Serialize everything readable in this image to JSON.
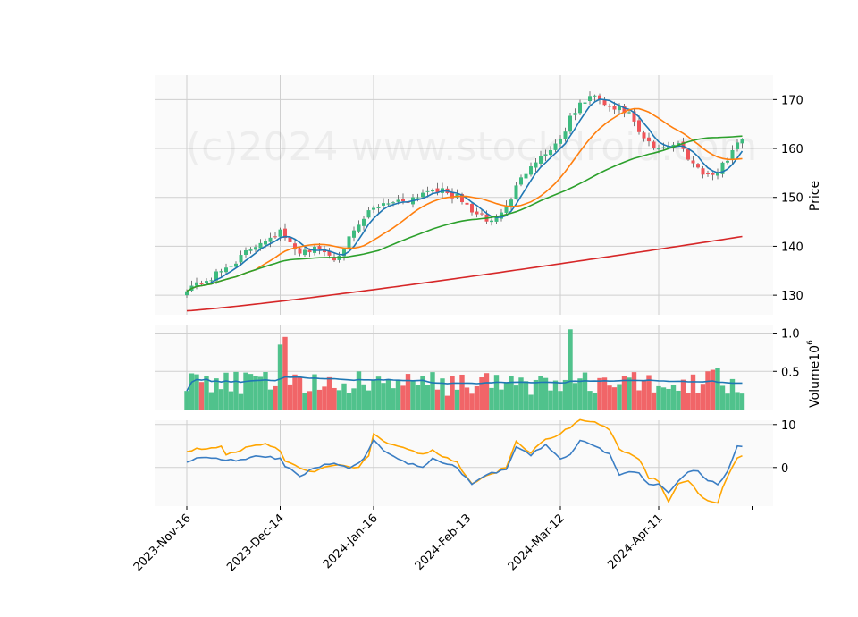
{
  "chart_data": {
    "type": "candlestick",
    "watermark": "(c)2024 www.stockdroid.com",
    "x_tick_labels": [
      "2023-Nov-16",
      "2023-Dec-14",
      "2024-Jan-16",
      "2024-Feb-13",
      "2024-Mar-12",
      "2024-Apr-11"
    ],
    "x_tick_index": [
      0,
      19,
      38,
      57,
      76,
      96
    ],
    "n_sessions": 114,
    "price_panel": {
      "ylabel": "Price",
      "ylim": [
        126,
        175
      ],
      "yticks": [
        130,
        140,
        150,
        160,
        170
      ],
      "up_color": "#3dbb7f",
      "down_color": "#f05458",
      "keypoints": [
        [
          0,
          131.5
        ],
        [
          5,
          133.5
        ],
        [
          10,
          137
        ],
        [
          15,
          141
        ],
        [
          19,
          143
        ],
        [
          22,
          139
        ],
        [
          27,
          139.5
        ],
        [
          30,
          137.5
        ],
        [
          32,
          140
        ],
        [
          35,
          144
        ],
        [
          37,
          147
        ],
        [
          40,
          149
        ],
        [
          45,
          149.5
        ],
        [
          50,
          152
        ],
        [
          55,
          150
        ],
        [
          59,
          146.5
        ],
        [
          62,
          145
        ],
        [
          65,
          148
        ],
        [
          67,
          152
        ],
        [
          70,
          157
        ],
        [
          73,
          159
        ],
        [
          76,
          162
        ],
        [
          78,
          166
        ],
        [
          80,
          169
        ],
        [
          82,
          170.5
        ],
        [
          84,
          170
        ],
        [
          86,
          168
        ],
        [
          88,
          168
        ],
        [
          90,
          167
        ],
        [
          92,
          163
        ],
        [
          95,
          160
        ],
        [
          97,
          160.5
        ],
        [
          100,
          161
        ],
        [
          103,
          157
        ],
        [
          106,
          154.5
        ],
        [
          108,
          155
        ],
        [
          110,
          158
        ],
        [
          112,
          161.5
        ],
        [
          113,
          162
        ]
      ]
    },
    "moving_averages": [
      {
        "color": "#1f77b4",
        "window": 5
      },
      {
        "color": "#ff7f0e",
        "window": 15
      },
      {
        "color": "#2ca02c",
        "window": 40
      },
      {
        "color": "#d62728",
        "end_value": 142,
        "start_value": 126.8
      }
    ],
    "volume_panel": {
      "ylabel": "Volume",
      "ylabel_exponent": "6",
      "ylim": [
        0,
        1.1
      ],
      "yticks": [
        0.5,
        1.0
      ],
      "spikes": [
        [
          19,
          0.85
        ],
        [
          20,
          0.95
        ],
        [
          78,
          1.05
        ],
        [
          106,
          0.5
        ],
        [
          107,
          0.52
        ],
        [
          108,
          0.55
        ]
      ],
      "ma_color": "#1f77b4"
    },
    "oscillator_panel": {
      "ylim": [
        -9,
        11
      ],
      "yticks": [
        0,
        10
      ],
      "series": [
        {
          "color": "#ffa500",
          "keypoints": [
            [
              0,
              3.8
            ],
            [
              3,
              4.5
            ],
            [
              7,
              4.8
            ],
            [
              8,
              3
            ],
            [
              12,
              4.5
            ],
            [
              16,
              5.5
            ],
            [
              19,
              4
            ],
            [
              20,
              1.5
            ],
            [
              25,
              -1
            ],
            [
              30,
              0.5
            ],
            [
              35,
              0
            ],
            [
              37,
              3
            ],
            [
              38,
              8
            ],
            [
              40,
              6
            ],
            [
              45,
              4
            ],
            [
              48,
              3
            ],
            [
              50,
              4
            ],
            [
              55,
              1
            ],
            [
              58,
              -4
            ],
            [
              61,
              -2
            ],
            [
              65,
              0
            ],
            [
              67,
              6
            ],
            [
              70,
              3.5
            ],
            [
              73,
              6.5
            ],
            [
              76,
              8
            ],
            [
              80,
              11
            ],
            [
              83,
              10.5
            ],
            [
              86,
              9
            ],
            [
              88,
              4
            ],
            [
              90,
              3
            ],
            [
              92,
              2
            ],
            [
              94,
              -2.5
            ],
            [
              96,
              -3
            ],
            [
              98,
              -8
            ],
            [
              100,
              -4
            ],
            [
              102,
              -3
            ],
            [
              104,
              -6
            ],
            [
              106,
              -7.5
            ],
            [
              108,
              -8
            ],
            [
              110,
              -2
            ],
            [
              112,
              2
            ],
            [
              113,
              3
            ]
          ]
        },
        {
          "color": "#3b7ec4",
          "keypoints": [
            [
              0,
              1.5
            ],
            [
              4,
              2.5
            ],
            [
              8,
              1.5
            ],
            [
              12,
              2
            ],
            [
              14,
              3
            ],
            [
              17,
              2.5
            ],
            [
              19,
              2
            ],
            [
              20,
              0.5
            ],
            [
              23,
              -2
            ],
            [
              26,
              0
            ],
            [
              30,
              1
            ],
            [
              33,
              0
            ],
            [
              36,
              2
            ],
            [
              38,
              6.5
            ],
            [
              40,
              4
            ],
            [
              45,
              1
            ],
            [
              48,
              0
            ],
            [
              50,
              2
            ],
            [
              55,
              0
            ],
            [
              58,
              -4
            ],
            [
              61,
              -1.5
            ],
            [
              65,
              -0.5
            ],
            [
              67,
              5
            ],
            [
              70,
              3
            ],
            [
              73,
              5.5
            ],
            [
              76,
              2
            ],
            [
              78,
              3
            ],
            [
              80,
              6.5
            ],
            [
              83,
              5
            ],
            [
              86,
              3
            ],
            [
              88,
              -1.5
            ],
            [
              90,
              -1
            ],
            [
              92,
              -1.5
            ],
            [
              94,
              -4
            ],
            [
              96,
              -4
            ],
            [
              98,
              -6
            ],
            [
              100,
              -3
            ],
            [
              103,
              -0.5
            ],
            [
              104,
              -1
            ],
            [
              106,
              -3
            ],
            [
              108,
              -4
            ],
            [
              110,
              -1
            ],
            [
              112,
              4.8
            ],
            [
              113,
              5
            ]
          ]
        }
      ]
    }
  }
}
